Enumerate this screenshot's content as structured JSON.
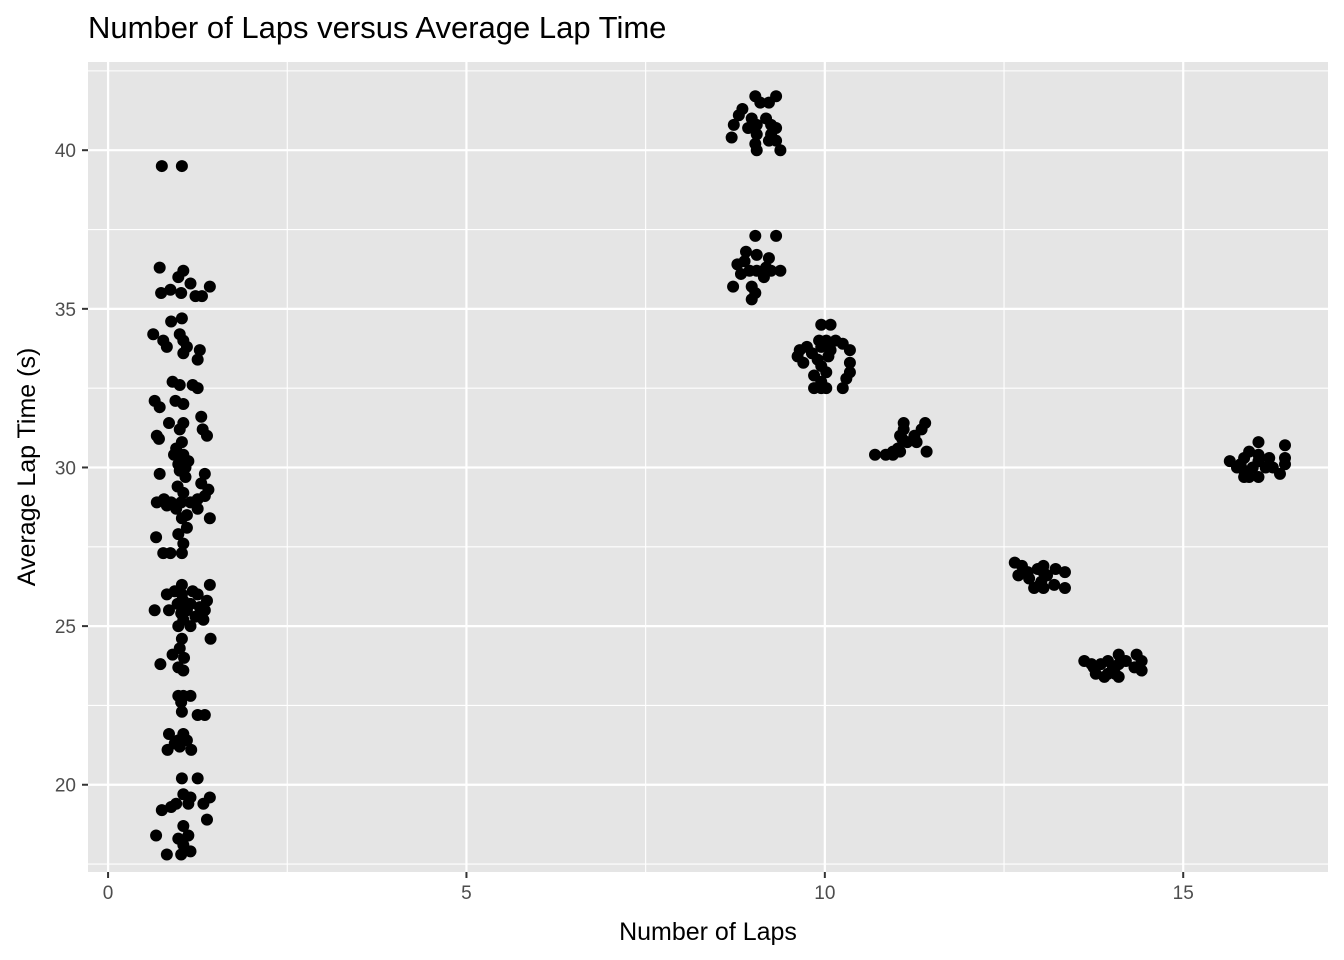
{
  "chart_data": {
    "type": "scatter",
    "title": "Number of Laps versus Average Lap Time",
    "xlabel": "Number of Laps",
    "ylabel": "Average Lap Time (s)",
    "xlim": [
      -0.28,
      17.02
    ],
    "ylim": [
      17.25,
      42.78
    ],
    "x_ticks": [
      0,
      5,
      10,
      15
    ],
    "y_ticks": [
      20,
      25,
      30,
      35,
      40
    ],
    "x_tick_labels": [
      "0",
      "5",
      "10",
      "15"
    ],
    "y_tick_labels": [
      "20",
      "25",
      "30",
      "35",
      "40"
    ],
    "grid": true,
    "legend": "none",
    "colors": {
      "panel_background": "#e5e5e5",
      "grid_line": "#ffffff",
      "point": "#000000",
      "tick_mark": "#333333",
      "tick_label": "#4d4d4d"
    },
    "points": [
      [
        0.75,
        39.5
      ],
      [
        1.03,
        39.5
      ],
      [
        0.72,
        36.3
      ],
      [
        1.05,
        36.2
      ],
      [
        0.98,
        36.0
      ],
      [
        1.15,
        35.8
      ],
      [
        1.42,
        35.7
      ],
      [
        0.74,
        35.5
      ],
      [
        0.87,
        35.6
      ],
      [
        1.02,
        35.5
      ],
      [
        1.22,
        35.4
      ],
      [
        1.31,
        35.4
      ],
      [
        1.03,
        34.7
      ],
      [
        0.88,
        34.6
      ],
      [
        0.63,
        34.2
      ],
      [
        1.0,
        34.2
      ],
      [
        0.77,
        34.0
      ],
      [
        1.05,
        34.0
      ],
      [
        0.82,
        33.8
      ],
      [
        1.1,
        33.8
      ],
      [
        1.28,
        33.7
      ],
      [
        1.05,
        33.6
      ],
      [
        1.25,
        33.4
      ],
      [
        0.9,
        32.7
      ],
      [
        1.0,
        32.6
      ],
      [
        1.18,
        32.6
      ],
      [
        1.25,
        32.5
      ],
      [
        0.65,
        32.1
      ],
      [
        0.94,
        32.1
      ],
      [
        1.05,
        32.0
      ],
      [
        0.72,
        31.9
      ],
      [
        1.3,
        31.6
      ],
      [
        0.85,
        31.4
      ],
      [
        1.05,
        31.4
      ],
      [
        1.0,
        31.2
      ],
      [
        1.32,
        31.2
      ],
      [
        0.68,
        31.0
      ],
      [
        1.38,
        31.0
      ],
      [
        0.71,
        30.9
      ],
      [
        1.03,
        30.8
      ],
      [
        0.95,
        30.6
      ],
      [
        0.92,
        30.4
      ],
      [
        1.05,
        30.4
      ],
      [
        1.12,
        30.2
      ],
      [
        0.98,
        30.1
      ],
      [
        1.08,
        30.0
      ],
      [
        1.0,
        29.9
      ],
      [
        1.35,
        29.8
      ],
      [
        0.72,
        29.8
      ],
      [
        1.08,
        29.7
      ],
      [
        1.3,
        29.5
      ],
      [
        0.97,
        29.4
      ],
      [
        1.4,
        29.3
      ],
      [
        1.05,
        29.2
      ],
      [
        1.35,
        29.1
      ],
      [
        0.78,
        29.0
      ],
      [
        1.25,
        29.0
      ],
      [
        0.68,
        28.9
      ],
      [
        0.88,
        28.9
      ],
      [
        1.02,
        28.9
      ],
      [
        1.15,
        28.9
      ],
      [
        0.82,
        28.8
      ],
      [
        1.25,
        28.7
      ],
      [
        0.95,
        28.7
      ],
      [
        1.1,
        28.5
      ],
      [
        1.03,
        28.4
      ],
      [
        1.42,
        28.4
      ],
      [
        1.1,
        28.1
      ],
      [
        0.98,
        27.9
      ],
      [
        0.67,
        27.8
      ],
      [
        1.05,
        27.6
      ],
      [
        0.77,
        27.3
      ],
      [
        0.87,
        27.3
      ],
      [
        1.03,
        27.3
      ],
      [
        1.42,
        26.3
      ],
      [
        1.03,
        26.3
      ],
      [
        0.93,
        26.1
      ],
      [
        1.18,
        26.1
      ],
      [
        0.82,
        26.0
      ],
      [
        1.03,
        26.0
      ],
      [
        1.25,
        26.0
      ],
      [
        1.05,
        25.8
      ],
      [
        1.38,
        25.8
      ],
      [
        0.97,
        25.7
      ],
      [
        1.15,
        25.7
      ],
      [
        1.05,
        25.6
      ],
      [
        1.28,
        25.6
      ],
      [
        0.65,
        25.5
      ],
      [
        0.85,
        25.5
      ],
      [
        1.1,
        25.5
      ],
      [
        1.35,
        25.5
      ],
      [
        1.02,
        25.4
      ],
      [
        1.22,
        25.3
      ],
      [
        1.05,
        25.2
      ],
      [
        1.33,
        25.2
      ],
      [
        0.98,
        25.0
      ],
      [
        1.15,
        25.0
      ],
      [
        1.03,
        24.6
      ],
      [
        1.43,
        24.6
      ],
      [
        1.0,
        24.3
      ],
      [
        0.9,
        24.1
      ],
      [
        1.06,
        24.0
      ],
      [
        0.73,
        23.8
      ],
      [
        0.98,
        23.7
      ],
      [
        1.05,
        23.6
      ],
      [
        0.98,
        22.8
      ],
      [
        1.05,
        22.8
      ],
      [
        1.15,
        22.8
      ],
      [
        1.02,
        22.6
      ],
      [
        1.03,
        22.3
      ],
      [
        1.25,
        22.2
      ],
      [
        1.35,
        22.2
      ],
      [
        0.85,
        21.6
      ],
      [
        1.05,
        21.6
      ],
      [
        0.98,
        21.4
      ],
      [
        1.1,
        21.4
      ],
      [
        0.93,
        21.3
      ],
      [
        1.0,
        21.2
      ],
      [
        1.16,
        21.1
      ],
      [
        0.83,
        21.1
      ],
      [
        1.03,
        20.2
      ],
      [
        1.25,
        20.2
      ],
      [
        1.05,
        19.7
      ],
      [
        1.15,
        19.6
      ],
      [
        1.42,
        19.6
      ],
      [
        0.95,
        19.4
      ],
      [
        1.12,
        19.4
      ],
      [
        1.33,
        19.4
      ],
      [
        0.88,
        19.3
      ],
      [
        0.75,
        19.2
      ],
      [
        1.38,
        18.9
      ],
      [
        1.05,
        18.7
      ],
      [
        1.12,
        18.4
      ],
      [
        0.67,
        18.4
      ],
      [
        0.98,
        18.3
      ],
      [
        1.05,
        18.1
      ],
      [
        1.15,
        17.9
      ],
      [
        0.82,
        17.8
      ],
      [
        1.02,
        17.8
      ],
      [
        9.03,
        41.7
      ],
      [
        9.32,
        41.7
      ],
      [
        9.1,
        41.5
      ],
      [
        9.22,
        41.5
      ],
      [
        8.85,
        41.3
      ],
      [
        8.8,
        41.1
      ],
      [
        9.18,
        41.0
      ],
      [
        8.98,
        41.0
      ],
      [
        9.05,
        40.8
      ],
      [
        8.73,
        40.8
      ],
      [
        9.25,
        40.8
      ],
      [
        9.32,
        40.7
      ],
      [
        8.93,
        40.7
      ],
      [
        9.05,
        40.5
      ],
      [
        9.25,
        40.5
      ],
      [
        8.7,
        40.4
      ],
      [
        9.22,
        40.3
      ],
      [
        9.32,
        40.3
      ],
      [
        9.03,
        40.2
      ],
      [
        9.05,
        40.0
      ],
      [
        9.38,
        40.0
      ],
      [
        9.32,
        37.3
      ],
      [
        9.03,
        37.3
      ],
      [
        8.9,
        36.8
      ],
      [
        9.05,
        36.7
      ],
      [
        8.88,
        36.5
      ],
      [
        9.22,
        36.6
      ],
      [
        8.78,
        36.4
      ],
      [
        9.18,
        36.3
      ],
      [
        9.05,
        36.2
      ],
      [
        8.95,
        36.2
      ],
      [
        9.25,
        36.2
      ],
      [
        9.38,
        36.2
      ],
      [
        8.83,
        36.1
      ],
      [
        9.15,
        36.0
      ],
      [
        8.72,
        35.7
      ],
      [
        8.98,
        35.7
      ],
      [
        9.03,
        35.5
      ],
      [
        8.98,
        35.3
      ],
      [
        9.95,
        34.5
      ],
      [
        10.08,
        34.5
      ],
      [
        9.92,
        34.0
      ],
      [
        10.02,
        34.0
      ],
      [
        10.15,
        34.0
      ],
      [
        10.25,
        33.9
      ],
      [
        9.75,
        33.8
      ],
      [
        9.95,
        33.8
      ],
      [
        9.65,
        33.7
      ],
      [
        10.08,
        33.7
      ],
      [
        10.35,
        33.7
      ],
      [
        9.82,
        33.6
      ],
      [
        9.62,
        33.5
      ],
      [
        10.05,
        33.5
      ],
      [
        9.9,
        33.4
      ],
      [
        9.7,
        33.3
      ],
      [
        10.35,
        33.3
      ],
      [
        9.95,
        33.2
      ],
      [
        10.02,
        33.0
      ],
      [
        10.35,
        33.0
      ],
      [
        9.85,
        32.9
      ],
      [
        10.3,
        32.8
      ],
      [
        9.95,
        32.7
      ],
      [
        10.02,
        32.5
      ],
      [
        9.95,
        32.5
      ],
      [
        9.85,
        32.5
      ],
      [
        10.25,
        32.5
      ],
      [
        11.1,
        31.4
      ],
      [
        11.4,
        31.4
      ],
      [
        11.1,
        31.2
      ],
      [
        11.35,
        31.2
      ],
      [
        11.05,
        31.0
      ],
      [
        11.25,
        31.0
      ],
      [
        11.08,
        30.9
      ],
      [
        11.15,
        30.8
      ],
      [
        11.28,
        30.8
      ],
      [
        11.02,
        30.6
      ],
      [
        10.95,
        30.5
      ],
      [
        11.42,
        30.5
      ],
      [
        10.85,
        30.4
      ],
      [
        10.7,
        30.4
      ],
      [
        10.95,
        30.4
      ],
      [
        11.05,
        30.5
      ],
      [
        12.65,
        27.0
      ],
      [
        12.75,
        26.9
      ],
      [
        13.05,
        26.9
      ],
      [
        12.97,
        26.8
      ],
      [
        13.22,
        26.8
      ],
      [
        13.05,
        26.7
      ],
      [
        12.83,
        26.7
      ],
      [
        13.35,
        26.7
      ],
      [
        12.7,
        26.6
      ],
      [
        13.1,
        26.6
      ],
      [
        12.85,
        26.5
      ],
      [
        13.02,
        26.4
      ],
      [
        13.2,
        26.3
      ],
      [
        12.92,
        26.2
      ],
      [
        13.05,
        26.2
      ],
      [
        13.35,
        26.2
      ],
      [
        13.0,
        26.3
      ],
      [
        13.62,
        23.9
      ],
      [
        13.72,
        23.8
      ],
      [
        14.1,
        24.1
      ],
      [
        14.35,
        24.1
      ],
      [
        13.95,
        23.9
      ],
      [
        14.2,
        23.9
      ],
      [
        14.42,
        23.9
      ],
      [
        13.85,
        23.8
      ],
      [
        14.1,
        23.8
      ],
      [
        13.75,
        23.7
      ],
      [
        14.02,
        23.7
      ],
      [
        14.32,
        23.7
      ],
      [
        14.42,
        23.6
      ],
      [
        13.78,
        23.5
      ],
      [
        13.95,
        23.5
      ],
      [
        13.9,
        23.4
      ],
      [
        14.05,
        23.5
      ],
      [
        14.1,
        23.4
      ],
      [
        16.05,
        30.8
      ],
      [
        16.42,
        30.7
      ],
      [
        15.92,
        30.5
      ],
      [
        16.05,
        30.4
      ],
      [
        15.85,
        30.3
      ],
      [
        16.2,
        30.3
      ],
      [
        16.42,
        30.3
      ],
      [
        15.65,
        30.2
      ],
      [
        15.8,
        30.1
      ],
      [
        16.05,
        30.2
      ],
      [
        16.42,
        30.1
      ],
      [
        15.75,
        30.0
      ],
      [
        15.97,
        30.0
      ],
      [
        16.15,
        30.0
      ],
      [
        16.25,
        30.0
      ],
      [
        15.85,
        29.9
      ],
      [
        16.35,
        29.8
      ],
      [
        15.92,
        29.7
      ],
      [
        16.05,
        29.7
      ],
      [
        15.85,
        29.7
      ]
    ]
  }
}
